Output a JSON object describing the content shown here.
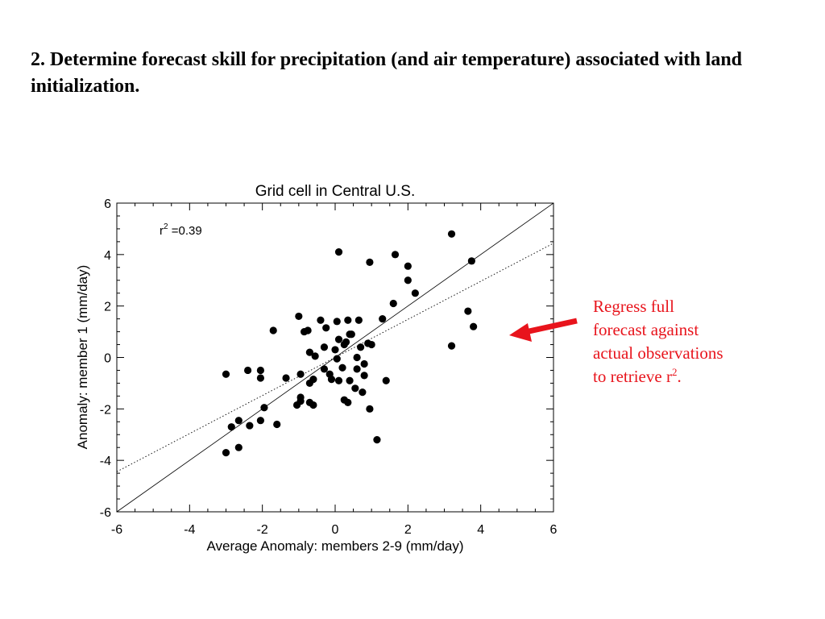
{
  "slide": {
    "heading": "2. Determine forecast skill for precipitation (and air temperature) associated with land initialization."
  },
  "annotation": {
    "line1": "Regress full",
    "line2": "forecast against",
    "line3": "actual observations",
    "line4_prefix": "to retrieve r",
    "line4_sup": "2",
    "line4_suffix": ".",
    "color": "#e8141c"
  },
  "chart_data": {
    "type": "scatter",
    "title": "Grid cell in Central U.S.",
    "xlabel": "Average Anomaly: members 2-9 (mm/day)",
    "ylabel": "Anomaly: member 1 (mm/day)",
    "xlim": [
      -6,
      6
    ],
    "ylim": [
      -6,
      6
    ],
    "xticks": [
      -6,
      -4,
      -2,
      0,
      2,
      4,
      6
    ],
    "yticks": [
      -6,
      -4,
      -2,
      0,
      2,
      4,
      6
    ],
    "xtick_labels": [
      "-6",
      "-4",
      "-2",
      "0",
      "2",
      "4",
      "6"
    ],
    "ytick_labels": [
      "-6",
      "-4",
      "-2",
      "0",
      "2",
      "4",
      "6"
    ],
    "stat_label": {
      "prefix": "r",
      "sup": "2",
      "value": " =0.39"
    },
    "grid": false,
    "lines": [
      {
        "kind": "one-to-one",
        "style": "solid",
        "slope": 1,
        "intercept": 0
      },
      {
        "kind": "regression",
        "style": "dotted",
        "slope": 0.74,
        "intercept": 0.0
      }
    ],
    "points": [
      [
        0.1,
        4.1
      ],
      [
        1.65,
        4.0
      ],
      [
        0.95,
        3.7
      ],
      [
        2.0,
        3.55
      ],
      [
        2.0,
        3.0
      ],
      [
        2.2,
        2.5
      ],
      [
        1.6,
        2.1
      ],
      [
        3.2,
        4.8
      ],
      [
        3.75,
        3.75
      ],
      [
        3.65,
        1.8
      ],
      [
        3.8,
        1.2
      ],
      [
        3.2,
        0.45
      ],
      [
        1.3,
        1.5
      ],
      [
        -1.0,
        1.6
      ],
      [
        -1.7,
        1.05
      ],
      [
        -0.85,
        1.0
      ],
      [
        -0.75,
        1.05
      ],
      [
        -0.4,
        1.45
      ],
      [
        -0.25,
        1.15
      ],
      [
        0.05,
        1.4
      ],
      [
        0.35,
        1.45
      ],
      [
        0.65,
        1.45
      ],
      [
        0.4,
        0.9
      ],
      [
        0.45,
        0.9
      ],
      [
        0.1,
        0.7
      ],
      [
        0.25,
        0.5
      ],
      [
        0.3,
        0.6
      ],
      [
        0.7,
        0.4
      ],
      [
        0.9,
        0.55
      ],
      [
        1.0,
        0.5
      ],
      [
        0.0,
        0.3
      ],
      [
        -0.3,
        0.4
      ],
      [
        -0.7,
        0.2
      ],
      [
        -0.55,
        0.05
      ],
      [
        0.05,
        -0.05
      ],
      [
        0.2,
        -0.4
      ],
      [
        0.6,
        0.0
      ],
      [
        0.6,
        -0.45
      ],
      [
        0.8,
        -0.25
      ],
      [
        -0.3,
        -0.45
      ],
      [
        -0.15,
        -0.65
      ],
      [
        -0.1,
        -0.85
      ],
      [
        0.1,
        -0.9
      ],
      [
        0.4,
        -0.9
      ],
      [
        0.55,
        -1.2
      ],
      [
        0.8,
        -0.7
      ],
      [
        1.4,
        -0.9
      ],
      [
        0.75,
        -1.35
      ],
      [
        -0.95,
        -0.65
      ],
      [
        -0.7,
        -1.0
      ],
      [
        -0.6,
        -0.85
      ],
      [
        -1.35,
        -0.8
      ],
      [
        -0.95,
        -1.55
      ],
      [
        -0.95,
        -1.7
      ],
      [
        -0.7,
        -1.75
      ],
      [
        -0.6,
        -1.85
      ],
      [
        -1.05,
        -1.85
      ],
      [
        0.25,
        -1.65
      ],
      [
        0.35,
        -1.75
      ],
      [
        0.95,
        -2.0
      ],
      [
        1.15,
        -3.2
      ],
      [
        -2.4,
        -0.5
      ],
      [
        -2.05,
        -0.5
      ],
      [
        -2.05,
        -0.8
      ],
      [
        -3.0,
        -0.65
      ],
      [
        -1.95,
        -1.95
      ],
      [
        -2.05,
        -2.45
      ],
      [
        -2.35,
        -2.65
      ],
      [
        -2.65,
        -2.45
      ],
      [
        -2.85,
        -2.7
      ],
      [
        -1.6,
        -2.6
      ],
      [
        -2.65,
        -3.5
      ],
      [
        -3.0,
        -3.7
      ]
    ]
  }
}
